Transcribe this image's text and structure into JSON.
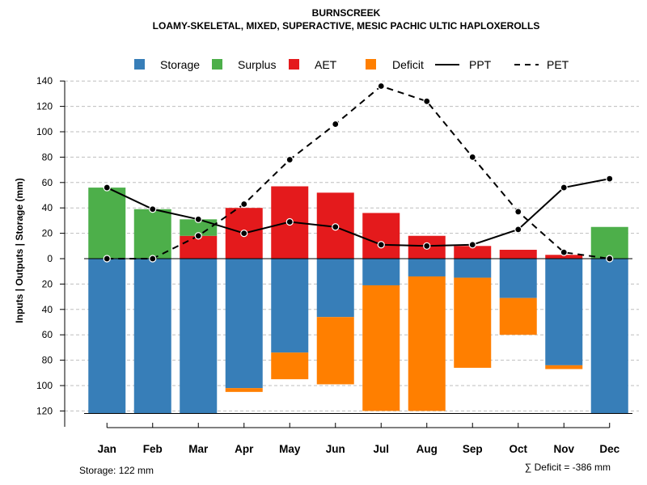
{
  "chart_data": {
    "type": "bar",
    "title": "BURNSCREEK",
    "subtitle": "LOAMY-SKELETAL, MIXED, SUPERACTIVE, MESIC PACHIC ULTIC HAPLOXEROLLS",
    "categories": [
      "Jan",
      "Feb",
      "Mar",
      "Apr",
      "May",
      "Jun",
      "Jul",
      "Aug",
      "Sep",
      "Oct",
      "Nov",
      "Dec"
    ],
    "ylabel": "Inputs | Outputs | Storage    (mm)",
    "ylim": [
      -122,
      140
    ],
    "y_ticks": [
      {
        "value": 140,
        "label": "140"
      },
      {
        "value": 120,
        "label": "120"
      },
      {
        "value": 100,
        "label": "100"
      },
      {
        "value": 80,
        "label": "80"
      },
      {
        "value": 60,
        "label": "60"
      },
      {
        "value": 40,
        "label": "40"
      },
      {
        "value": 20,
        "label": "20"
      },
      {
        "value": 0,
        "label": "0"
      },
      {
        "value": -20,
        "label": "20"
      },
      {
        "value": -40,
        "label": "40"
      },
      {
        "value": -60,
        "label": "60"
      },
      {
        "value": -80,
        "label": "80"
      },
      {
        "value": -100,
        "label": "100"
      },
      {
        "value": -120,
        "label": "120"
      }
    ],
    "grid": true,
    "legend_position": "top",
    "legend": [
      {
        "key": "storage",
        "label": "Storage",
        "kind": "box"
      },
      {
        "key": "surplus",
        "label": "Surplus",
        "kind": "box"
      },
      {
        "key": "aet",
        "label": "AET",
        "kind": "box"
      },
      {
        "key": "deficit",
        "label": "Deficit",
        "kind": "box"
      },
      {
        "key": "ppt",
        "label": "PPT",
        "kind": "solid-line"
      },
      {
        "key": "pet",
        "label": "PET",
        "kind": "dashed-line"
      }
    ],
    "colors": {
      "storage": "#377EB8",
      "surplus": "#4DAF4A",
      "aet": "#E41A1C",
      "deficit": "#FF7F00",
      "line": "#000000",
      "grid": "#BEBEBE"
    },
    "series": [
      {
        "name": "Surplus",
        "key": "surplus",
        "values": [
          56,
          39,
          13,
          0,
          0,
          0,
          0,
          0,
          0,
          0,
          0,
          25
        ]
      },
      {
        "name": "AET",
        "key": "aet",
        "values": [
          0,
          0,
          18,
          40,
          57,
          52,
          36,
          18,
          10,
          7,
          3,
          0
        ]
      },
      {
        "name": "Storage",
        "key": "storage",
        "values": [
          122,
          122,
          122,
          102,
          74,
          46,
          21,
          14,
          15,
          31,
          84,
          122
        ]
      },
      {
        "name": "Deficit",
        "key": "deficit",
        "values": [
          0,
          0,
          0,
          3,
          21,
          53,
          99,
          106,
          71,
          29,
          3,
          0
        ]
      },
      {
        "name": "PPT",
        "key": "ppt",
        "values": [
          56,
          39,
          31,
          20,
          29,
          25,
          11,
          10,
          11,
          23,
          56,
          63
        ]
      },
      {
        "name": "PET",
        "key": "pet",
        "values": [
          0,
          0,
          18,
          43,
          78,
          106,
          136,
          124,
          80,
          37,
          5,
          0
        ]
      }
    ],
    "footer_left": "Storage: 122 mm",
    "footer_right": "∑ Deficit = -386 mm"
  }
}
